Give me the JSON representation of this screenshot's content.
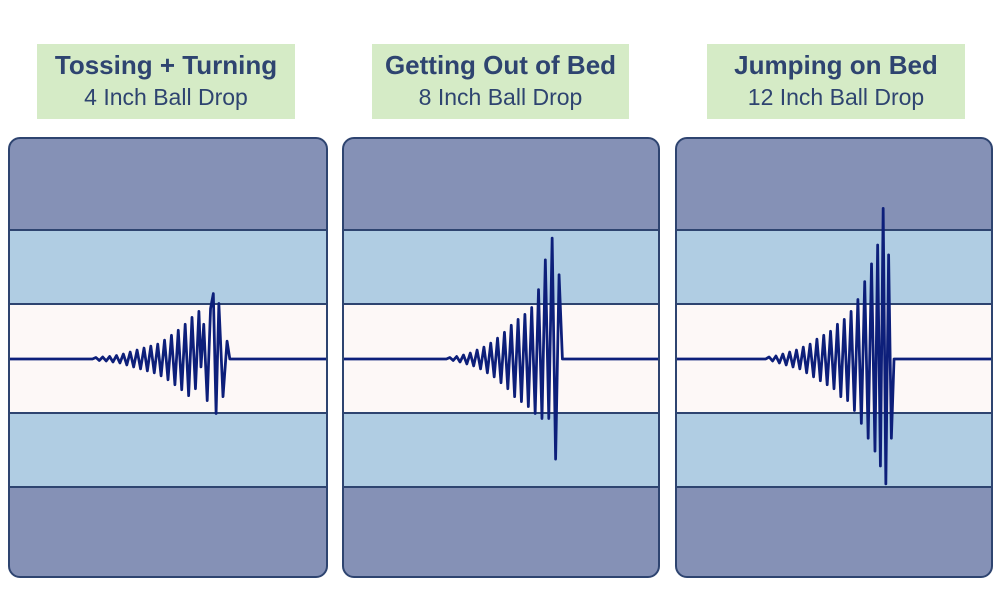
{
  "panels": [
    {
      "title": "Tossing + Turning",
      "subtitle": "4 Inch Ball Drop",
      "waveform": [
        [
          0,
          0
        ],
        [
          120,
          0
        ],
        [
          125,
          1.5
        ],
        [
          130,
          -1.5
        ],
        [
          135,
          2
        ],
        [
          140,
          -2
        ],
        [
          145,
          2.5
        ],
        [
          150,
          -3
        ],
        [
          155,
          3.5
        ],
        [
          160,
          -4
        ],
        [
          165,
          5
        ],
        [
          170,
          -6
        ],
        [
          175,
          7
        ],
        [
          180,
          -8
        ],
        [
          185,
          9
        ],
        [
          190,
          -10
        ],
        [
          195,
          11
        ],
        [
          200,
          -12
        ],
        [
          205,
          13
        ],
        [
          210,
          -14
        ],
        [
          215,
          15
        ],
        [
          220,
          -17
        ],
        [
          225,
          19
        ],
        [
          230,
          -21
        ],
        [
          235,
          24
        ],
        [
          240,
          -26
        ],
        [
          245,
          29
        ],
        [
          250,
          -31
        ],
        [
          255,
          35
        ],
        [
          260,
          -37
        ],
        [
          265,
          42
        ],
        [
          270,
          -30
        ],
        [
          275,
          48
        ],
        [
          278,
          -8
        ],
        [
          282,
          35
        ],
        [
          287,
          -42
        ],
        [
          292,
          51
        ],
        [
          296,
          66
        ],
        [
          300,
          -55
        ],
        [
          304,
          56
        ],
        [
          310,
          -38
        ],
        [
          316,
          18
        ],
        [
          320,
          0
        ],
        [
          325,
          0
        ],
        [
          460,
          0
        ]
      ]
    },
    {
      "title": "Getting Out of Bed",
      "subtitle": "8 Inch Ball Drop",
      "waveform": [
        [
          0,
          0
        ],
        [
          150,
          0
        ],
        [
          155,
          1.5
        ],
        [
          160,
          -1.5
        ],
        [
          165,
          2.5
        ],
        [
          170,
          -3
        ],
        [
          175,
          4
        ],
        [
          180,
          -5
        ],
        [
          185,
          6
        ],
        [
          190,
          -7
        ],
        [
          195,
          9
        ],
        [
          200,
          -10
        ],
        [
          205,
          12
        ],
        [
          210,
          -14
        ],
        [
          215,
          16
        ],
        [
          220,
          -18
        ],
        [
          225,
          21
        ],
        [
          230,
          -24
        ],
        [
          235,
          27
        ],
        [
          240,
          -30
        ],
        [
          245,
          34
        ],
        [
          250,
          -38
        ],
        [
          255,
          40
        ],
        [
          260,
          -43
        ],
        [
          265,
          45
        ],
        [
          270,
          -48
        ],
        [
          275,
          52
        ],
        [
          280,
          -55
        ],
        [
          285,
          70
        ],
        [
          290,
          -60
        ],
        [
          295,
          100
        ],
        [
          300,
          -60
        ],
        [
          305,
          122
        ],
        [
          310,
          -101
        ],
        [
          315,
          85
        ],
        [
          320,
          0
        ],
        [
          460,
          0
        ]
      ]
    },
    {
      "title": "Jumping on Bed",
      "subtitle": "12 Inch Ball Drop",
      "waveform": [
        [
          0,
          0
        ],
        [
          130,
          0
        ],
        [
          135,
          2
        ],
        [
          140,
          -2
        ],
        [
          145,
          3
        ],
        [
          150,
          -4
        ],
        [
          155,
          5
        ],
        [
          160,
          -6
        ],
        [
          165,
          7
        ],
        [
          170,
          -8
        ],
        [
          175,
          9
        ],
        [
          180,
          -10
        ],
        [
          185,
          12
        ],
        [
          190,
          -14
        ],
        [
          195,
          15
        ],
        [
          200,
          -18
        ],
        [
          205,
          20
        ],
        [
          210,
          -22
        ],
        [
          215,
          24
        ],
        [
          220,
          -26
        ],
        [
          225,
          28
        ],
        [
          230,
          -30
        ],
        [
          235,
          35
        ],
        [
          240,
          -38
        ],
        [
          245,
          40
        ],
        [
          250,
          -42
        ],
        [
          255,
          48
        ],
        [
          260,
          -52
        ],
        [
          265,
          60
        ],
        [
          270,
          -65
        ],
        [
          275,
          78
        ],
        [
          280,
          -80
        ],
        [
          285,
          96
        ],
        [
          290,
          -93
        ],
        [
          294,
          115
        ],
        [
          298,
          -108
        ],
        [
          302,
          152
        ],
        [
          306,
          -126
        ],
        [
          310,
          105
        ],
        [
          314,
          -80
        ],
        [
          318,
          0
        ],
        [
          460,
          0
        ]
      ]
    }
  ],
  "colors": {
    "label_bg": "#d5ebc6",
    "label_text": "#2e4470",
    "outer_band": "#8591b6",
    "middle_band": "#b0cde3",
    "center_band": "#fdf8f7",
    "border": "#2e4470",
    "waveform": "#0d1f7a"
  }
}
